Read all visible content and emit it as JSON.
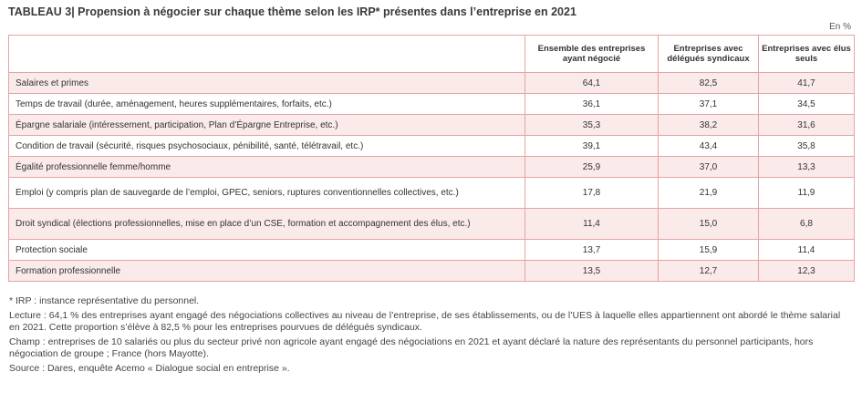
{
  "title": "TABLEAU 3| Propension à négocier sur chaque thème selon les IRP* présentes dans l’entreprise en 2021",
  "unit": "En %",
  "headers": [
    "",
    "Ensemble des entreprises ayant négocié",
    "Entreprises avec délégués syndicaux",
    "Entreprises avec élus seuls"
  ],
  "rows": [
    {
      "label": "Salaires et primes",
      "values": [
        "64,1",
        "82,5",
        "41,7"
      ]
    },
    {
      "label": "Temps de travail (durée, aménagement, heures supplémentaires, forfaits, etc.)",
      "values": [
        "36,1",
        "37,1",
        "34,5"
      ]
    },
    {
      "label": "Épargne salariale (intéressement, participation, Plan d’Épargne Entreprise, etc.)",
      "values": [
        "35,3",
        "38,2",
        "31,6"
      ]
    },
    {
      "label": "Condition de travail (sécurité, risques psychosociaux, pénibilité, santé, télétravail, etc.)",
      "values": [
        "39,1",
        "43,4",
        "35,8"
      ]
    },
    {
      "label": "Égalité professionnelle femme/homme",
      "values": [
        "25,9",
        "37,0",
        "13,3"
      ]
    },
    {
      "label": "Emploi (y compris plan de sauvegarde de l’emploi, GPEC, seniors, ruptures conventionnelles collectives, etc.)",
      "values": [
        "17,8",
        "21,9",
        "11,9"
      ]
    },
    {
      "label": "Droit syndical (élections professionnelles, mise en place d’un CSE, formation et accompagnement des élus, etc.)",
      "values": [
        "11,4",
        "15,0",
        "6,8"
      ]
    },
    {
      "label": "Protection sociale",
      "values": [
        "13,7",
        "15,9",
        "11,4"
      ]
    },
    {
      "label": "Formation professionnelle",
      "values": [
        "13,5",
        "12,7",
        "12,3"
      ]
    }
  ],
  "notes": {
    "irp": "* IRP : instance représentative du personnel.",
    "lecture": "Lecture : 64,1 % des entreprises ayant engagé des négociations collectives au niveau de l’entreprise, de ses établissements, ou de l’UES à laquelle elles appartiennent ont abordé le thème salarial en 2021. Cette proportion s’élève à 82,5 % pour les entreprises pourvues de délégués syndicaux.",
    "champ": "Champ : entreprises de 10 salariés ou plus du secteur privé non agricole ayant engagé des négociations en 2021 et ayant déclaré la nature des représentants du personnel participants, hors négociation de groupe ; France (hors Mayotte).",
    "source": "Source : Dares, enquête Acemo « Dialogue social en entreprise »."
  }
}
